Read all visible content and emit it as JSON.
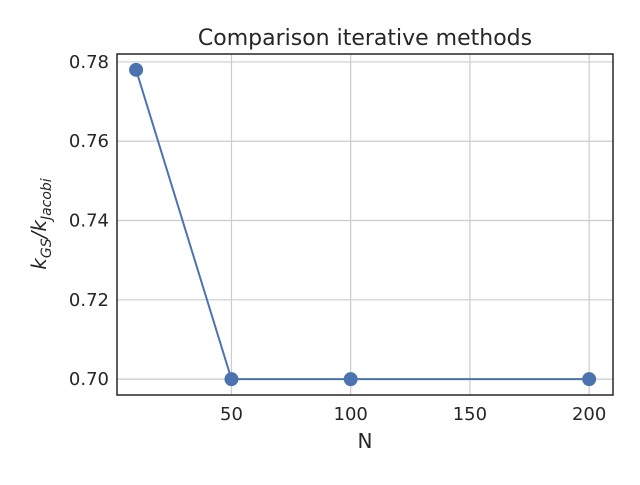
{
  "chart_data": {
    "type": "line",
    "title": "Comparison iterative methods",
    "xlabel": "N",
    "ylabel": {
      "main": "k",
      "main_sub": "GS",
      "sep": "/k",
      "sep_sub": "Jacobi"
    },
    "x": [
      10,
      50,
      100,
      200
    ],
    "series": [
      {
        "values": [
          0.778,
          0.7,
          0.7,
          0.7
        ],
        "color": "#4c72b0"
      }
    ],
    "xlim": [
      2,
      210
    ],
    "ylim": [
      0.696,
      0.782
    ],
    "xticks": [
      50,
      100,
      150,
      200
    ],
    "xtick_labels": [
      "50",
      "100",
      "150",
      "200"
    ],
    "yticks": [
      0.7,
      0.72,
      0.74,
      0.76,
      0.78
    ],
    "ytick_labels": [
      "0.70",
      "0.72",
      "0.74",
      "0.76",
      "0.78"
    ],
    "grid": true,
    "marker": "circle"
  }
}
